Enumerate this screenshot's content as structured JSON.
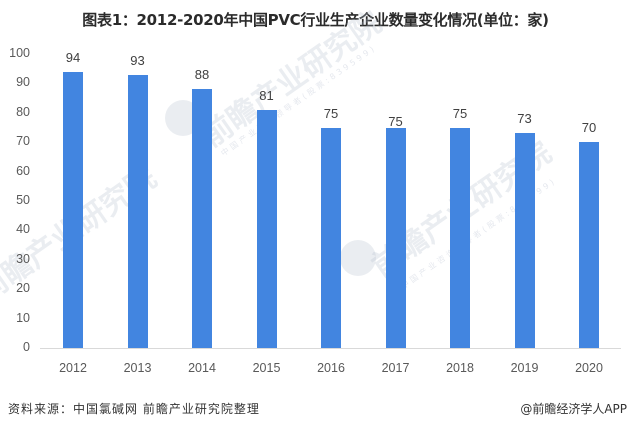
{
  "title": "图表1：2012-2020年中国PVC行业生产企业数量变化情况(单位：家)",
  "footer": {
    "source": "资料来源：中国氯碱网 前瞻产业研究院整理",
    "credit": "@前瞻经济学人APP"
  },
  "watermark": {
    "text": "前瞻产业研究院",
    "sub": "中国产业咨询领导者(股票:839599)"
  },
  "colors": {
    "bar": "#4285E0",
    "axis": "#D9D9D9",
    "text": "#595959"
  },
  "chart_data": {
    "type": "bar",
    "title": "图表1：2012-2020年中国PVC行业生产企业数量变化情况(单位：家)",
    "xlabel": "",
    "ylabel": "",
    "categories": [
      "2012",
      "2013",
      "2014",
      "2015",
      "2016",
      "2017",
      "2018",
      "2019",
      "2020"
    ],
    "values": [
      94,
      93,
      88,
      81,
      75,
      75,
      75,
      73,
      70
    ],
    "ylim": [
      0,
      100
    ],
    "yticks": [
      0,
      10,
      20,
      30,
      40,
      50,
      60,
      70,
      80,
      90,
      100
    ],
    "grid": false,
    "legend": null,
    "data_labels": true
  }
}
